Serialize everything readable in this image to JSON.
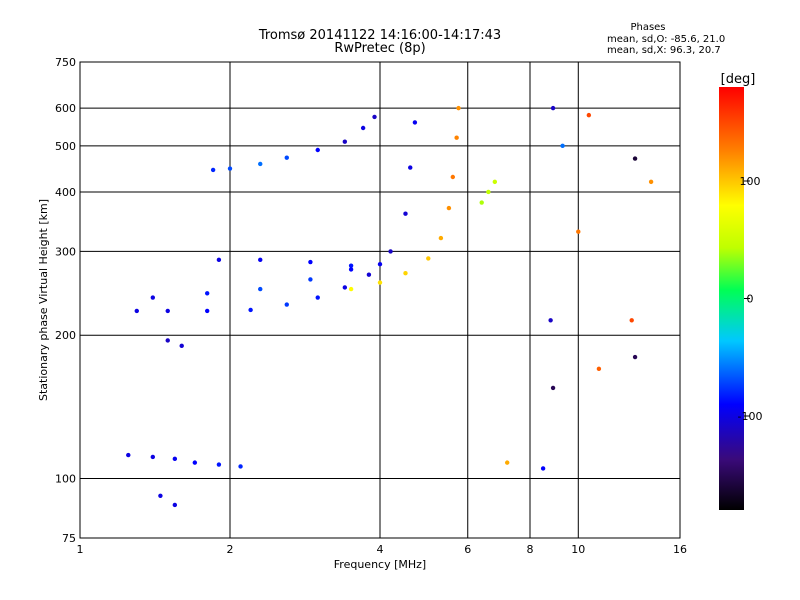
{
  "chart_data": {
    "type": "scatter",
    "title": "Tromsø 20141122 14:16:00-14:17:43",
    "subtitle": "RwPretec (8p)",
    "xlabel": "Frequency [MHz]",
    "ylabel": "Stationary phase Virtual Height [km]",
    "x_scale": "log",
    "y_scale": "log",
    "xlim": [
      1,
      16
    ],
    "ylim": [
      75,
      750
    ],
    "x_ticks": [
      1,
      2,
      4,
      6,
      8,
      10,
      16
    ],
    "y_ticks": [
      75,
      100,
      200,
      300,
      400,
      500,
      600,
      750
    ],
    "grid": true,
    "stats": {
      "heading": "Phases",
      "line_o": "mean, sd,O: -85.6, 21.0",
      "line_x": "mean, sd,X: 96.3, 20.7"
    },
    "colorbar": {
      "label": "[deg]",
      "range": [
        -180,
        180
      ],
      "ticks": [
        100,
        0,
        -100
      ],
      "colormap": "rainbow"
    },
    "series": [
      {
        "values": [
          {
            "x": 1.85,
            "y": 445,
            "phase": -80
          },
          {
            "x": 2.0,
            "y": 448,
            "phase": -70
          },
          {
            "x": 2.3,
            "y": 458,
            "phase": -60
          },
          {
            "x": 2.6,
            "y": 472,
            "phase": -70
          },
          {
            "x": 3.0,
            "y": 490,
            "phase": -90
          },
          {
            "x": 3.4,
            "y": 510,
            "phase": -110
          },
          {
            "x": 3.7,
            "y": 545,
            "phase": -100
          },
          {
            "x": 3.9,
            "y": 575,
            "phase": -110
          }
        ]
      },
      {
        "values": [
          {
            "x": 1.3,
            "y": 225,
            "phase": -100
          },
          {
            "x": 1.5,
            "y": 225,
            "phase": -100
          },
          {
            "x": 1.8,
            "y": 225,
            "phase": -90
          },
          {
            "x": 2.2,
            "y": 226,
            "phase": -85
          },
          {
            "x": 2.6,
            "y": 232,
            "phase": -75
          },
          {
            "x": 3.0,
            "y": 240,
            "phase": -85
          },
          {
            "x": 3.4,
            "y": 252,
            "phase": -100
          },
          {
            "x": 3.8,
            "y": 268,
            "phase": -105
          },
          {
            "x": 4.2,
            "y": 300,
            "phase": -110
          },
          {
            "x": 4.5,
            "y": 360,
            "phase": -105
          },
          {
            "x": 4.6,
            "y": 450,
            "phase": -100
          },
          {
            "x": 4.7,
            "y": 560,
            "phase": -95
          }
        ]
      },
      {
        "values": [
          {
            "x": 1.9,
            "y": 288,
            "phase": -100
          },
          {
            "x": 2.3,
            "y": 288,
            "phase": -95
          },
          {
            "x": 2.9,
            "y": 285,
            "phase": -90
          },
          {
            "x": 3.5,
            "y": 280,
            "phase": -85
          },
          {
            "x": 4.0,
            "y": 282,
            "phase": -95
          }
        ]
      },
      {
        "values": [
          {
            "x": 1.4,
            "y": 240,
            "phase": -100
          },
          {
            "x": 1.8,
            "y": 245,
            "phase": -85
          },
          {
            "x": 2.3,
            "y": 250,
            "phase": -70
          },
          {
            "x": 2.9,
            "y": 262,
            "phase": -75
          },
          {
            "x": 3.5,
            "y": 275,
            "phase": -90
          }
        ]
      },
      {
        "values": [
          {
            "x": 3.5,
            "y": 250,
            "phase": 80
          },
          {
            "x": 4.0,
            "y": 258,
            "phase": 90
          },
          {
            "x": 4.5,
            "y": 270,
            "phase": 95
          },
          {
            "x": 5.0,
            "y": 290,
            "phase": 100
          },
          {
            "x": 5.3,
            "y": 320,
            "phase": 110
          },
          {
            "x": 5.5,
            "y": 370,
            "phase": 120
          },
          {
            "x": 5.6,
            "y": 430,
            "phase": 130
          },
          {
            "x": 5.7,
            "y": 520,
            "phase": 125
          },
          {
            "x": 5.75,
            "y": 600,
            "phase": 120
          }
        ]
      },
      {
        "values": [
          {
            "x": 6.4,
            "y": 380,
            "phase": 40
          },
          {
            "x": 6.6,
            "y": 400,
            "phase": 45
          },
          {
            "x": 6.8,
            "y": 420,
            "phase": 50
          }
        ]
      },
      {
        "values": [
          {
            "x": 1.25,
            "y": 112,
            "phase": -100
          },
          {
            "x": 1.4,
            "y": 111,
            "phase": -100
          },
          {
            "x": 1.55,
            "y": 110,
            "phase": -95
          },
          {
            "x": 1.7,
            "y": 108,
            "phase": -90
          },
          {
            "x": 1.9,
            "y": 107,
            "phase": -85
          },
          {
            "x": 2.1,
            "y": 106,
            "phase": -80
          }
        ]
      },
      {
        "values": [
          {
            "x": 1.5,
            "y": 195,
            "phase": -110
          },
          {
            "x": 1.6,
            "y": 190,
            "phase": -105
          },
          {
            "x": 1.45,
            "y": 92,
            "phase": -100
          },
          {
            "x": 1.55,
            "y": 88,
            "phase": -100
          }
        ]
      },
      {
        "values": [
          {
            "x": 8.9,
            "y": 600,
            "phase": -110
          },
          {
            "x": 8.8,
            "y": 215,
            "phase": -110
          },
          {
            "x": 9.3,
            "y": 500,
            "phase": -60
          },
          {
            "x": 8.9,
            "y": 155,
            "phase": -150
          },
          {
            "x": 8.5,
            "y": 105,
            "phase": -90
          },
          {
            "x": 13.0,
            "y": 470,
            "phase": -160
          },
          {
            "x": 13.0,
            "y": 180,
            "phase": -150
          },
          {
            "x": 12.8,
            "y": 215,
            "phase": 150
          },
          {
            "x": 14.0,
            "y": 420,
            "phase": 120
          },
          {
            "x": 10.5,
            "y": 580,
            "phase": 150
          },
          {
            "x": 7.2,
            "y": 108,
            "phase": 110
          },
          {
            "x": 11.0,
            "y": 170,
            "phase": 140
          },
          {
            "x": 10.0,
            "y": 330,
            "phase": 130
          }
        ]
      }
    ]
  }
}
